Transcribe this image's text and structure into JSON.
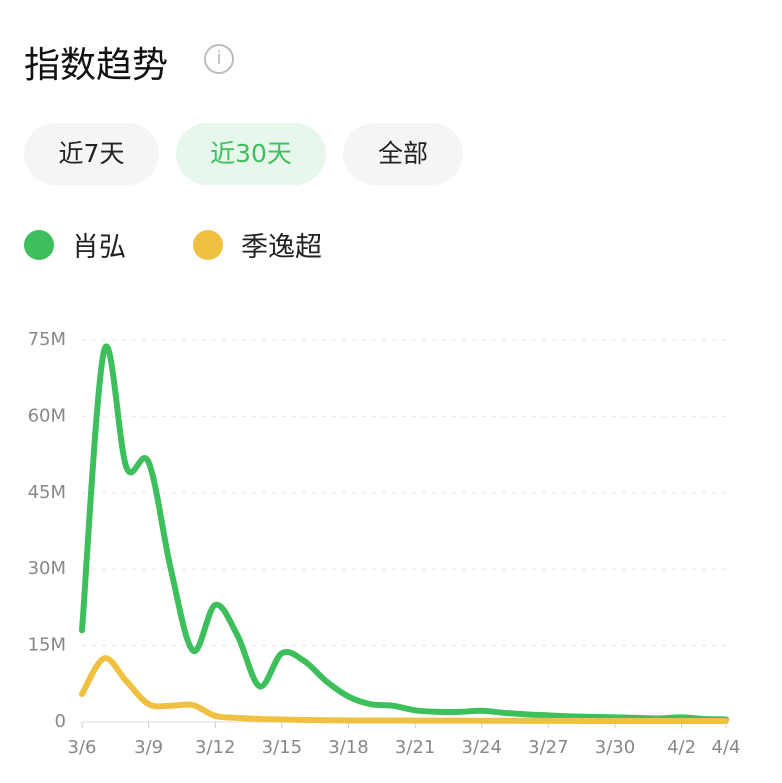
{
  "header": {
    "title": "指数趋势"
  },
  "tabs": [
    "近7天",
    "近30天",
    "全部"
  ],
  "chart_data": {
    "type": "line",
    "categories": [
      "3/6",
      null,
      null,
      "3/9",
      null,
      null,
      "3/12",
      null,
      null,
      "3/15",
      null,
      null,
      "3/18",
      null,
      null,
      "3/21",
      null,
      null,
      "3/24",
      null,
      null,
      "3/27",
      null,
      null,
      "3/30",
      null,
      null,
      "4/2",
      null,
      "4/4"
    ],
    "series": [
      {
        "name": "肖弘",
        "color": "#3dbf5c",
        "values": [
          18000000,
          73000000,
          50000000,
          51000000,
          30000000,
          14000000,
          23000000,
          17000000,
          7000000,
          13500000,
          12000000,
          8000000,
          5000000,
          3500000,
          3200000,
          2300000,
          2000000,
          2000000,
          2200000,
          1800000,
          1500000,
          1300000,
          1100000,
          1000000,
          900000,
          800000,
          700000,
          900000,
          600000,
          500000
        ]
      },
      {
        "name": "季逸超",
        "color": "#f0c040",
        "values": [
          5500000,
          12500000,
          8000000,
          3500000,
          3200000,
          3300000,
          1200000,
          800000,
          600000,
          500000,
          400000,
          350000,
          300000,
          300000,
          300000,
          280000,
          270000,
          260000,
          250000,
          240000,
          230000,
          220000,
          210000,
          200000,
          200000,
          200000,
          200000,
          200000,
          200000,
          200000
        ]
      }
    ],
    "ylim": [
      0,
      75000000
    ],
    "yticks": [
      0,
      {
        "value": 15000000,
        "label": "15M"
      },
      {
        "value": 30000000,
        "label": "30M"
      },
      {
        "value": 45000000,
        "label": "45M"
      },
      {
        "value": 60000000,
        "label": "60M"
      },
      {
        "value": 75000000,
        "label": "75M"
      }
    ],
    "grid": true
  }
}
